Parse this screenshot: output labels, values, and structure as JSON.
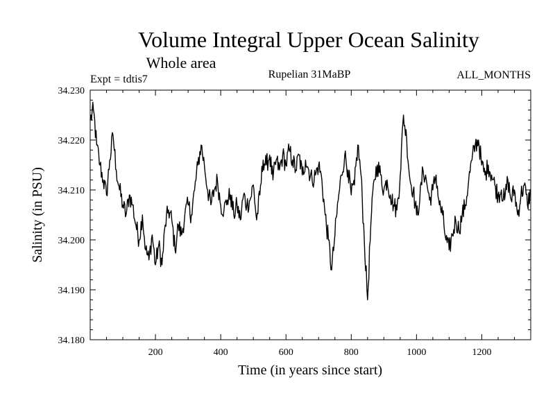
{
  "chart_data": {
    "type": "line",
    "title": "Volume Integral Upper Ocean Salinity",
    "subtitle": "Whole area",
    "experiment_label": "Expt = tdtis7",
    "period_label": "Rupelian  31MaBP",
    "months_label": "ALL_MONTHS",
    "xlabel": "Time (in years since start)",
    "ylabel": "Salinity (in PSU)",
    "xlim": [
      0,
      1350
    ],
    "ylim": [
      34.18,
      34.23
    ],
    "x_ticks": [
      200,
      400,
      600,
      800,
      1000,
      1200
    ],
    "x_tick_labels": [
      "200",
      "400",
      "600",
      "800",
      "1000",
      "1200"
    ],
    "y_ticks": [
      34.18,
      34.19,
      34.2,
      34.21,
      34.22,
      34.23
    ],
    "y_tick_labels": [
      "34.180",
      "34.190",
      "34.200",
      "34.210",
      "34.220",
      "34.230"
    ],
    "series": [
      {
        "name": "Salinity",
        "color": "#000000",
        "x": [
          0,
          10,
          20,
          30,
          40,
          50,
          60,
          70,
          80,
          90,
          100,
          110,
          120,
          130,
          140,
          150,
          160,
          170,
          180,
          190,
          200,
          210,
          220,
          230,
          240,
          250,
          260,
          270,
          280,
          290,
          300,
          310,
          320,
          330,
          340,
          350,
          360,
          370,
          380,
          390,
          400,
          410,
          420,
          430,
          440,
          450,
          460,
          470,
          480,
          490,
          500,
          510,
          520,
          530,
          540,
          550,
          560,
          570,
          580,
          590,
          600,
          610,
          620,
          630,
          640,
          650,
          660,
          670,
          680,
          690,
          700,
          710,
          720,
          730,
          740,
          750,
          760,
          770,
          780,
          790,
          800,
          810,
          820,
          830,
          840,
          850,
          860,
          870,
          880,
          890,
          900,
          910,
          920,
          930,
          940,
          950,
          960,
          970,
          980,
          990,
          1000,
          1010,
          1020,
          1030,
          1040,
          1050,
          1060,
          1070,
          1080,
          1090,
          1100,
          1110,
          1120,
          1130,
          1140,
          1150,
          1160,
          1170,
          1180,
          1190,
          1200,
          1210,
          1220,
          1230,
          1240,
          1250,
          1260,
          1270,
          1280,
          1290,
          1300,
          1310,
          1320,
          1330,
          1340,
          1350
        ],
        "y": [
          34.224,
          34.226,
          34.219,
          34.215,
          34.212,
          34.209,
          34.216,
          34.221,
          34.214,
          34.21,
          34.207,
          34.205,
          34.209,
          34.207,
          34.203,
          34.2,
          34.205,
          34.198,
          34.196,
          34.201,
          34.195,
          34.199,
          34.195,
          34.203,
          34.206,
          34.204,
          34.198,
          34.203,
          34.201,
          34.205,
          34.207,
          34.205,
          34.21,
          34.215,
          34.219,
          34.215,
          34.21,
          34.207,
          34.21,
          34.212,
          34.207,
          34.206,
          34.208,
          34.209,
          34.205,
          34.207,
          34.204,
          34.209,
          34.207,
          34.208,
          34.211,
          34.204,
          34.209,
          34.216,
          34.215,
          34.217,
          34.212,
          34.216,
          34.214,
          34.217,
          34.215,
          34.218,
          34.216,
          34.214,
          34.217,
          34.213,
          34.216,
          34.214,
          34.212,
          34.213,
          34.215,
          34.212,
          34.205,
          34.2,
          34.194,
          34.201,
          34.208,
          34.213,
          34.217,
          34.214,
          34.209,
          34.211,
          34.219,
          34.213,
          34.2,
          34.188,
          34.203,
          34.212,
          34.215,
          34.213,
          34.21,
          34.212,
          34.209,
          34.207,
          34.206,
          34.213,
          34.225,
          34.22,
          34.212,
          34.21,
          34.205,
          34.208,
          34.214,
          34.212,
          34.208,
          34.21,
          34.213,
          34.207,
          34.205,
          34.2,
          34.198,
          34.201,
          34.204,
          34.202,
          34.205,
          34.207,
          34.212,
          34.216,
          34.219,
          34.22,
          34.215,
          34.213,
          34.215,
          34.213,
          34.211,
          34.209,
          34.21,
          34.208,
          34.212,
          34.208,
          34.21,
          34.205,
          34.209,
          34.211,
          34.207,
          34.21
        ]
      }
    ]
  }
}
